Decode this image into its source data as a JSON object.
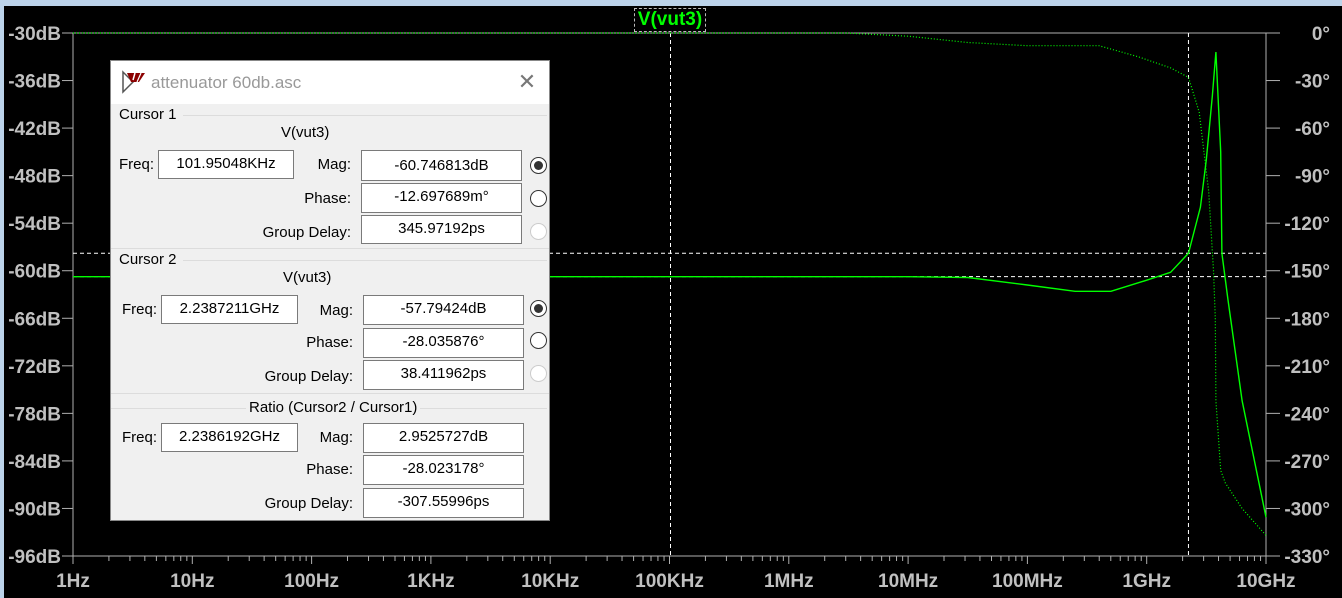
{
  "window": {
    "accent_strip_color": "#bcd3ea"
  },
  "plot": {
    "trace_label": "V(vut3)",
    "trace_color": "#00ff00",
    "background": "#000000",
    "cursor_color": "#ffffff"
  },
  "chart_data": {
    "type": "line",
    "title": "V(vut3)",
    "x_scale": "log",
    "xlim_hz": [
      1,
      10000000000
    ],
    "x_tick_labels": [
      "1Hz",
      "10Hz",
      "100Hz",
      "1KHz",
      "10KHz",
      "100KHz",
      "1MHz",
      "10MHz",
      "100MHz",
      "1GHz",
      "10GHz"
    ],
    "y_left": {
      "unit": "dB",
      "ylim": [
        -96,
        -30
      ],
      "tick_labels": [
        "-30dB",
        "-36dB",
        "-42dB",
        "-48dB",
        "-54dB",
        "-60dB",
        "-66dB",
        "-72dB",
        "-78dB",
        "-84dB",
        "-90dB",
        "-96dB"
      ]
    },
    "y_right": {
      "unit": "deg",
      "ylim": [
        -330,
        0
      ],
      "tick_labels": [
        "0°",
        "-30°",
        "-60°",
        "-90°",
        "-120°",
        "-150°",
        "-180°",
        "-210°",
        "-240°",
        "-270°",
        "-300°",
        "-330°"
      ]
    },
    "grid": false,
    "series": [
      {
        "kind": "magnitude",
        "axis": "left",
        "style": "solid",
        "points_hz_db": [
          [
            1,
            -60.75
          ],
          [
            10000000,
            -60.75
          ],
          [
            31622777,
            -60.85
          ],
          [
            100000000,
            -61.8
          ],
          [
            251188643,
            -62.6
          ],
          [
            501187234,
            -62.6
          ],
          [
            1000000000,
            -61.2
          ],
          [
            1584893192,
            -60.2
          ],
          [
            2238721100,
            -57.79
          ],
          [
            2818382931,
            -52
          ],
          [
            3162277660,
            -46
          ],
          [
            3548133892,
            -38
          ],
          [
            3801893963,
            -32.4
          ],
          [
            4168693835,
            -45
          ],
          [
            4265795188,
            -57.8
          ],
          [
            4786300923,
            -63.5
          ],
          [
            6309573445,
            -76.4
          ],
          [
            10000000000,
            -91.1
          ]
        ]
      },
      {
        "kind": "phase",
        "axis": "right",
        "style": "dotted",
        "points_hz_deg": [
          [
            1,
            0
          ],
          [
            3000000,
            0
          ],
          [
            10000000,
            -2
          ],
          [
            31622777,
            -6
          ],
          [
            100000000,
            -8
          ],
          [
            398107171,
            -8
          ],
          [
            851138038,
            -15
          ],
          [
            1584893192,
            -22
          ],
          [
            2238721100,
            -28.04
          ],
          [
            2754228703,
            -50
          ],
          [
            3311311215,
            -100
          ],
          [
            3630780548,
            -150
          ],
          [
            3758374043,
            -180
          ],
          [
            3801893963,
            -232
          ],
          [
            4168693835,
            -276
          ],
          [
            4570881896,
            -284
          ],
          [
            6309573445,
            -300
          ],
          [
            10000000000,
            -317
          ]
        ]
      }
    ],
    "cursors": [
      {
        "freq_hz": 101950.48,
        "mag_db": -60.746813
      },
      {
        "freq_hz": 2238721100,
        "mag_db": -57.79424
      }
    ]
  },
  "dialog": {
    "title": "attenuator 60db.asc",
    "close_icon": "close-x-icon",
    "cursor1": {
      "heading": "Cursor 1",
      "trace": "V(vut3)",
      "freq_label": "Freq:",
      "freq": "101.95048KHz",
      "mag_label": "Mag:",
      "mag": "-60.746813dB",
      "phase_label": "Phase:",
      "phase": "-12.697689m°",
      "gd_label": "Group Delay:",
      "gd": "345.97192ps",
      "selected": "mag"
    },
    "cursor2": {
      "heading": "Cursor 2",
      "trace": "V(vut3)",
      "freq_label": "Freq:",
      "freq": "2.2387211GHz",
      "mag_label": "Mag:",
      "mag": "-57.79424dB",
      "phase_label": "Phase:",
      "phase": "-28.035876°",
      "gd_label": "Group Delay:",
      "gd": "38.411962ps",
      "selected": "mag"
    },
    "ratio": {
      "heading": "Ratio (Cursor2 / Cursor1)",
      "freq_label": "Freq:",
      "freq": "2.2386192GHz",
      "mag_label": "Mag:",
      "mag": "2.9525727dB",
      "phase_label": "Phase:",
      "phase": "-28.023178°",
      "gd_label": "Group Delay:",
      "gd": "-307.55996ps"
    }
  }
}
